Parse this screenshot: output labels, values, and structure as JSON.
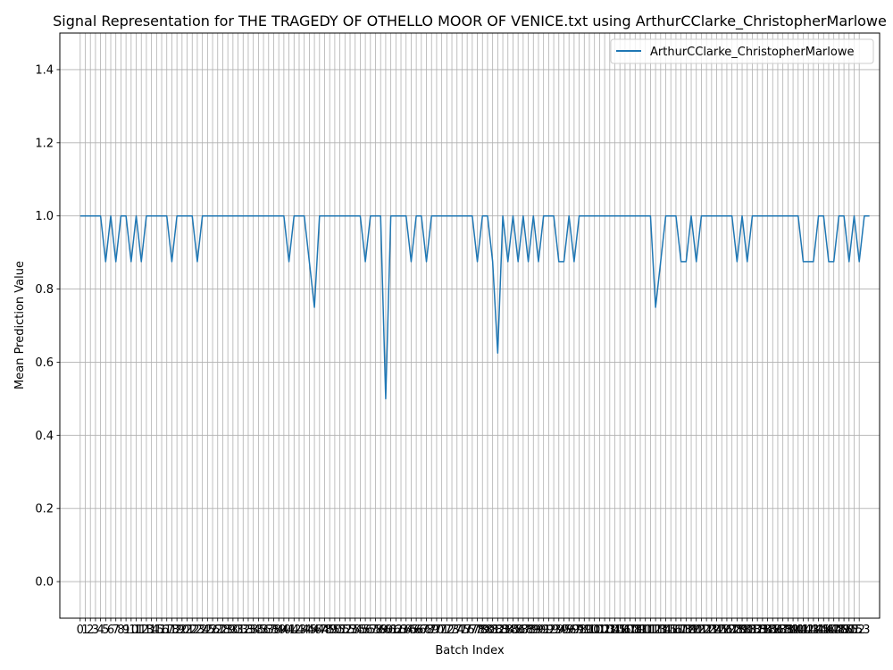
{
  "chart_data": {
    "type": "line",
    "title": "Signal Representation for THE TRAGEDY OF OTHELLO MOOR OF VENICE.txt using ArthurCClarke_ChristopherMarlowe",
    "xlabel": "Batch Index",
    "ylabel": "Mean Prediction Value",
    "xlim": [
      -4,
      157
    ],
    "ylim": [
      -0.1,
      1.5
    ],
    "yticks": [
      0.0,
      0.2,
      0.4,
      0.6,
      0.8,
      1.0,
      1.2,
      1.4
    ],
    "ytick_labels": [
      "0.0",
      "0.2",
      "0.4",
      "0.6",
      "0.8",
      "1.0",
      "1.2",
      "1.4"
    ],
    "xticks_start": 0,
    "xticks_end": 153,
    "grid": true,
    "legend_position": "upper right",
    "series": [
      {
        "name": "ArthurCClarke_ChristopherMarlowe",
        "color": "#1f77b4",
        "values": [
          1.0,
          1.0,
          1.0,
          1.0,
          1.0,
          0.875,
          1.0,
          0.875,
          1.0,
          1.0,
          0.875,
          1.0,
          0.875,
          1.0,
          1.0,
          1.0,
          1.0,
          1.0,
          0.875,
          1.0,
          1.0,
          1.0,
          1.0,
          0.875,
          1.0,
          1.0,
          1.0,
          1.0,
          1.0,
          1.0,
          1.0,
          1.0,
          1.0,
          1.0,
          1.0,
          1.0,
          1.0,
          1.0,
          1.0,
          1.0,
          1.0,
          0.875,
          1.0,
          1.0,
          1.0,
          0.875,
          0.75,
          1.0,
          1.0,
          1.0,
          1.0,
          1.0,
          1.0,
          1.0,
          1.0,
          1.0,
          0.875,
          1.0,
          1.0,
          1.0,
          0.5,
          1.0,
          1.0,
          1.0,
          1.0,
          0.875,
          1.0,
          1.0,
          0.875,
          1.0,
          1.0,
          1.0,
          1.0,
          1.0,
          1.0,
          1.0,
          1.0,
          1.0,
          0.875,
          1.0,
          1.0,
          0.875,
          0.625,
          1.0,
          0.875,
          1.0,
          0.875,
          1.0,
          0.875,
          1.0,
          0.875,
          1.0,
          1.0,
          1.0,
          0.875,
          0.875,
          1.0,
          0.875,
          1.0,
          1.0,
          1.0,
          1.0,
          1.0,
          1.0,
          1.0,
          1.0,
          1.0,
          1.0,
          1.0,
          1.0,
          1.0,
          1.0,
          1.0,
          0.75,
          0.875,
          1.0,
          1.0,
          1.0,
          0.875,
          0.875,
          1.0,
          0.875,
          1.0,
          1.0,
          1.0,
          1.0,
          1.0,
          1.0,
          1.0,
          0.875,
          1.0,
          0.875,
          1.0,
          1.0,
          1.0,
          1.0,
          1.0,
          1.0,
          1.0,
          1.0,
          1.0,
          1.0,
          0.875,
          0.875,
          0.875,
          1.0,
          1.0,
          0.875,
          0.875,
          1.0,
          1.0,
          0.875,
          1.0,
          0.875,
          1.0,
          1.0
        ]
      }
    ]
  }
}
